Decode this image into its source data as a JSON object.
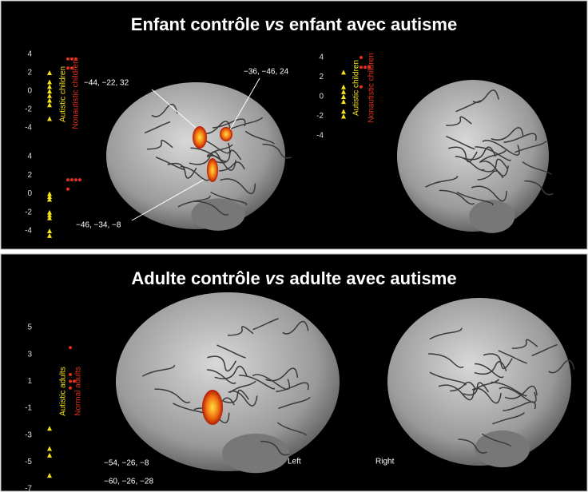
{
  "panels": [
    {
      "title": {
        "pre": "Enfant contrôle",
        "vs": "vs",
        "post": "enfant avec autisme"
      },
      "plots": [
        {
          "ticks": [
            4,
            2,
            0,
            -2,
            -4
          ],
          "groups": [
            {
              "label": "Autistic children",
              "color": "#f2e21c",
              "values": [
                2,
                1,
                0.5,
                0,
                -0.5,
                -1,
                -1.5,
                -3
              ]
            },
            {
              "label": "Nonautistic children",
              "color": "#e3301c",
              "values": [
                3.5,
                3.5,
                3.5,
                2.5,
                2.5
              ]
            }
          ]
        },
        {
          "ticks": [
            4,
            2,
            0,
            -2,
            -4
          ],
          "groups": [
            {
              "color": "#f2e21c",
              "values": [
                0,
                -0.3,
                -0.6,
                -2,
                -2.3,
                -2.6,
                -4,
                -4.5
              ]
            },
            {
              "color": "#e3301c",
              "values": [
                1.5,
                1.5,
                1.5,
                1.5,
                0.5
              ]
            }
          ]
        },
        {
          "ticks": [
            4,
            2,
            0,
            -2,
            -4
          ],
          "groups": [
            {
              "label": "Autistic children",
              "color": "#f2e21c",
              "values": [
                2.5,
                1,
                0.5,
                0,
                -0.5,
                -1.5,
                -2
              ]
            },
            {
              "label": "Nonautistic children",
              "color": "#e3301c",
              "values": [
                4,
                3,
                3,
                3,
                1
              ]
            }
          ]
        }
      ],
      "coordinates": [
        "−44, −22, 32",
        "−36, −46, 24",
        "−46, −34, −8"
      ]
    },
    {
      "title": {
        "pre": "Adulte contrôle",
        "vs": "vs",
        "post": "adulte avec autisme"
      },
      "plots": [
        {
          "ticks": [
            5,
            3,
            1,
            -1,
            -3,
            -5,
            -7
          ],
          "groups": [
            {
              "label": "Autistic adults",
              "color": "#f2e21c",
              "values": [
                -2.5,
                -4,
                -4.5,
                -6
              ]
            },
            {
              "label": "Normal adults",
              "color": "#e3301c",
              "values": [
                3.5,
                1.5,
                1,
                1,
                0.5
              ]
            }
          ]
        }
      ],
      "coordinates": [
        "−54, −26, −8",
        "−60, −26, −28"
      ],
      "sides": [
        "Left",
        "Right"
      ]
    }
  ]
}
